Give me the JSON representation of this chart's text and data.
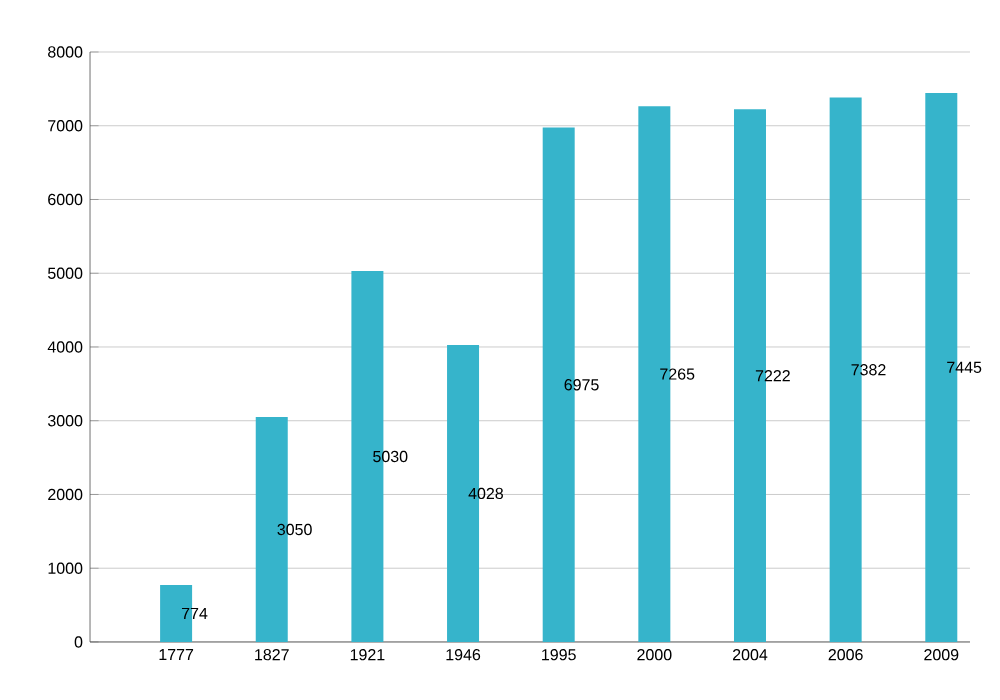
{
  "chart_data": {
    "type": "bar",
    "categories": [
      "1777",
      "1827",
      "1921",
      "1946",
      "1995",
      "2000",
      "2004",
      "2006",
      "2009"
    ],
    "values": [
      774,
      3050,
      5030,
      4028,
      6975,
      7265,
      7222,
      7382,
      7445
    ],
    "color": "#36b4cb",
    "ylim": [
      0,
      8000
    ],
    "yticks": [
      0,
      1000,
      2000,
      3000,
      4000,
      5000,
      6000,
      7000,
      8000
    ],
    "grid": "y",
    "data_labels": true
  }
}
